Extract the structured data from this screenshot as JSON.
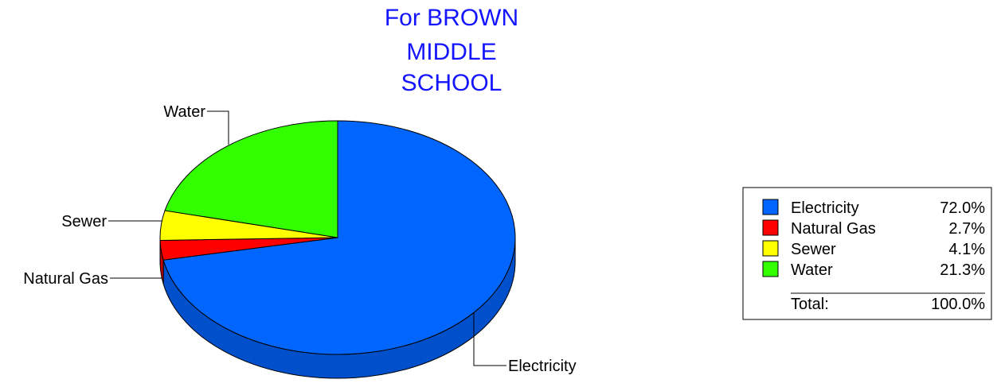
{
  "chart_data": {
    "type": "pie",
    "title_lines": [
      "For BROWN",
      "MIDDLE",
      "SCHOOL"
    ],
    "slices": [
      {
        "name": "Electricity",
        "value": 72.0,
        "percent_label": "72.0%",
        "color": "#0066ff",
        "side_color": "#0050cc"
      },
      {
        "name": "Natural Gas",
        "value": 2.7,
        "percent_label": "2.7%",
        "color": "#ff0000",
        "side_color": "#c80000"
      },
      {
        "name": "Sewer",
        "value": 4.1,
        "percent_label": "4.1%",
        "color": "#ffff00",
        "side_color": "#c8c800"
      },
      {
        "name": "Water",
        "value": 21.3,
        "percent_label": "21.3%",
        "color": "#33ff00",
        "side_color": "#28c800"
      }
    ],
    "legend": {
      "placement": "right",
      "total_label": "Total:",
      "total_value": "100.0%"
    },
    "three_d": true
  }
}
